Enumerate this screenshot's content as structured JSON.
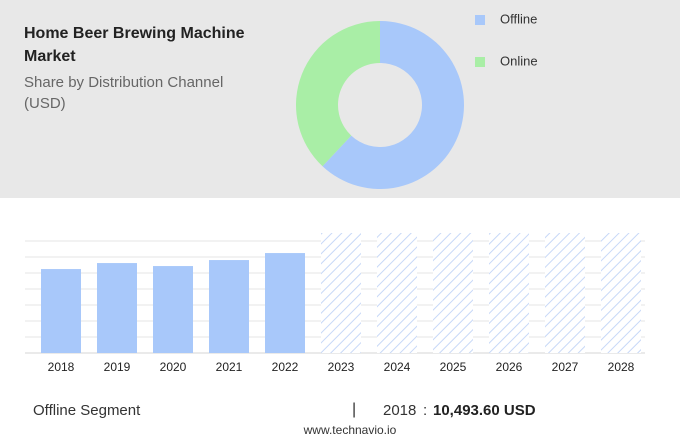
{
  "chart_data": [
    {
      "type": "donut",
      "title": "Home Beer Brewing Machine Market",
      "subtitle": "Share by Distribution Channel (USD)",
      "categories": [
        "Offline",
        "Online"
      ],
      "values": [
        62,
        38
      ],
      "colors": [
        "#a8c8fa",
        "#a9eea6"
      ],
      "legend": "top-right"
    },
    {
      "type": "bar",
      "categories": [
        "2018",
        "2019",
        "2020",
        "2021",
        "2022",
        "2023",
        "2024",
        "2025",
        "2026",
        "2027",
        "2028"
      ],
      "series": [
        {
          "name": "Offline",
          "color": "#a8c8fa",
          "values": [
            10493.6,
            11243,
            10868,
            11618,
            12493,
            null,
            null,
            null,
            null,
            null,
            null
          ]
        }
      ],
      "ylim": [
        0,
        15000
      ]
    }
  ],
  "footer": {
    "segment": "Offline Segment",
    "year": "2018",
    "value": "10,493.60 USD",
    "source": "www.technavio.io"
  }
}
